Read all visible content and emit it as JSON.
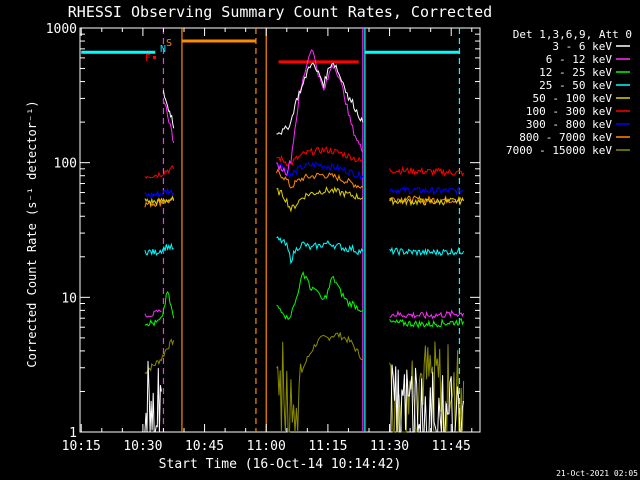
{
  "chart_data": {
    "type": "line",
    "title": "RHESSI Observing Summary Count Rates, Corrected",
    "xlabel": "Start Time (16-Oct-14 10:14:42)",
    "ylabel": "Corrected Count Rate (s⁻¹ detector⁻¹)",
    "x_range": [
      "10:14:42",
      "11:52:00"
    ],
    "ylim": [
      1,
      1000
    ],
    "y_scale": "log",
    "grid": false,
    "x_ticks": [
      "10:15",
      "10:30",
      "10:45",
      "11:00",
      "11:15",
      "11:30",
      "11:45"
    ],
    "y_ticks": [
      "1",
      "10",
      "100",
      "1000"
    ],
    "legend_header": "Det 1,3,6,9, Att 0",
    "legend_position": "right",
    "footer_date": "21-Oct-2021 02:05",
    "flags": [
      {
        "label": "S",
        "color": "#ff8c00"
      },
      {
        "label": "N",
        "color": "#00e5ff"
      },
      {
        "label": "F",
        "color": "#ff0000"
      }
    ],
    "series": [
      {
        "name": "3 - 6 keV",
        "color": "#ffffff",
        "segments": [
          {
            "x": [
              10.5083,
              10.5167,
              10.525,
              10.5333,
              10.5417,
              10.55,
              10.5583,
              10.5667,
              10.575
            ],
            "y": [
              1.8,
              1.6,
              2.0,
              1.5,
              1.9,
              1.7,
              1.8,
              1.5,
              2.0
            ]
          },
          {
            "x": [
              10.5833,
              10.5917,
              10.6,
              10.6083,
              10.6167,
              10.625
            ],
            "y": [
              330,
              300,
              260,
              240,
              220,
              180
            ]
          },
          {
            "x": [
              11.0417,
              11.0667,
              11.0833,
              11.1,
              11.1167,
              11.1333,
              11.15,
              11.1667,
              11.1833,
              11.2,
              11.2167,
              11.2333,
              11.25,
              11.2667,
              11.2833,
              11.3,
              11.3167,
              11.3333,
              11.35,
              11.3667,
              11.3917
            ],
            "y": [
              170,
              170,
              180,
              200,
              270,
              330,
              380,
              480,
              560,
              490,
              450,
              380,
              480,
              560,
              520,
              430,
              380,
              300,
              280,
              240,
              200
            ]
          },
          {
            "x": [
              11.5,
              11.55,
              11.6,
              11.65,
              11.7,
              11.75,
              11.8
            ],
            "y": [
              1.8,
              1.6,
              1.9,
              1.5,
              1.8,
              1.6,
              1.7
            ]
          }
        ]
      },
      {
        "name": "6 - 12 keV",
        "color": "#ff2dff",
        "segments": [
          {
            "x": [
              10.5083,
              10.55,
              10.575
            ],
            "y": [
              7.5,
              7.5,
              7.8
            ]
          },
          {
            "x": [
              10.5833,
              10.6,
              10.6167,
              10.625
            ],
            "y": [
              300,
              230,
              170,
              140
            ]
          },
          {
            "x": [
              11.0417,
              11.0667,
              11.0833,
              11.1,
              11.1167,
              11.1333,
              11.15,
              11.1667,
              11.1833,
              11.2,
              11.2167,
              11.2333,
              11.25,
              11.2667,
              11.2833,
              11.3,
              11.3167,
              11.3333,
              11.35,
              11.3667,
              11.3917
            ],
            "y": [
              95,
              90,
              85,
              105,
              180,
              300,
              420,
              560,
              720,
              560,
              420,
              340,
              420,
              540,
              500,
              400,
              320,
              230,
              180,
              150,
              120
            ]
          },
          {
            "x": [
              11.5,
              11.65,
              11.8
            ],
            "y": [
              7.5,
              7.3,
              7.6
            ]
          }
        ]
      },
      {
        "name": "12 - 25 keV",
        "color": "#00ff00",
        "segments": [
          {
            "x": [
              10.5083,
              10.55,
              10.575,
              10.6,
              10.625
            ],
            "y": [
              6.5,
              6.4,
              6.8,
              11,
              7
            ]
          },
          {
            "x": [
              11.0417,
              11.0667,
              11.0833,
              11.1,
              11.1167,
              11.1333,
              11.15,
              11.1667,
              11.1833,
              11.2,
              11.2167,
              11.2333,
              11.25,
              11.2667,
              11.2833,
              11.3,
              11.3167,
              11.3333,
              11.35,
              11.3667,
              11.3917
            ],
            "y": [
              8.5,
              8,
              7,
              7.5,
              9,
              12,
              15,
              14,
              11,
              12,
              10,
              9.5,
              11,
              14,
              13,
              11,
              10,
              9,
              9,
              8.5,
              8
            ]
          },
          {
            "x": [
              11.5,
              11.65,
              11.8
            ],
            "y": [
              6.5,
              6.3,
              6.6
            ]
          }
        ]
      },
      {
        "name": "25 - 50 keV",
        "color": "#00ffff",
        "segments": [
          {
            "x": [
              10.5083,
              10.55,
              10.575,
              10.6,
              10.625
            ],
            "y": [
              22,
              21.5,
              22.5,
              24,
              23
            ]
          },
          {
            "x": [
              11.0417,
              11.0667,
              11.0833,
              11.1,
              11.1167,
              11.1333,
              11.15,
              11.1667,
              11.1833,
              11.2,
              11.2167,
              11.2333,
              11.25,
              11.2667,
              11.2833,
              11.3,
              11.3167,
              11.3333,
              11.35,
              11.3667,
              11.3917
            ],
            "y": [
              27,
              26,
              24,
              19,
              22,
              24,
              25,
              24,
              23,
              24,
              24,
              25,
              25,
              25,
              24,
              24,
              23,
              23,
              23,
              22,
              22
            ]
          },
          {
            "x": [
              11.5,
              11.65,
              11.8
            ],
            "y": [
              22,
              21.5,
              22
            ]
          }
        ]
      },
      {
        "name": "50 - 100 keV",
        "color": "#e0d000",
        "segments": [
          {
            "x": [
              10.5083,
              10.55,
              10.575,
              10.6,
              10.625
            ],
            "y": [
              52,
              51,
              52,
              53,
              53
            ]
          },
          {
            "x": [
              11.0417,
              11.0667,
              11.0833,
              11.1,
              11.1167,
              11.1333,
              11.15,
              11.1667,
              11.1833,
              11.2,
              11.2167,
              11.2333,
              11.25,
              11.2667,
              11.2833,
              11.3,
              11.3167,
              11.3333,
              11.35,
              11.3667,
              11.3917
            ],
            "y": [
              62,
              58,
              52,
              45,
              48,
              52,
              56,
              58,
              59,
              60,
              61,
              62,
              62,
              62,
              61,
              60,
              59,
              58,
              57,
              56,
              55
            ]
          },
          {
            "x": [
              11.5,
              11.65,
              11.8
            ],
            "y": [
              52,
              51,
              52
            ]
          }
        ]
      },
      {
        "name": "100 - 300 keV",
        "color": "#ff0000",
        "segments": [
          {
            "x": [
              10.5083,
              10.55,
              10.575,
              10.6,
              10.625
            ],
            "y": [
              80,
              81,
              83,
              88,
              90
            ]
          },
          {
            "x": [
              11.0417,
              11.0667,
              11.0833,
              11.1,
              11.1167,
              11.1333,
              11.15,
              11.1667,
              11.1833,
              11.2,
              11.2167,
              11.2333,
              11.25,
              11.2667,
              11.2833,
              11.3,
              11.3167,
              11.3333,
              11.35,
              11.3667,
              11.3917
            ],
            "y": [
              110,
              105,
              100,
              98,
              105,
              110,
              115,
              118,
              120,
              122,
              123,
              124,
              124,
              122,
              120,
              118,
              115,
              112,
              110,
              105,
              102
            ]
          },
          {
            "x": [
              11.5,
              11.65,
              11.8
            ],
            "y": [
              88,
              86,
              84
            ]
          }
        ]
      },
      {
        "name": "300 - 800 keV",
        "color": "#0000ff",
        "segments": [
          {
            "x": [
              10.5083,
              10.55,
              10.575,
              10.6,
              10.625
            ],
            "y": [
              57,
              58,
              59,
              62,
              60
            ]
          },
          {
            "x": [
              11.0417,
              11.0667,
              11.0833,
              11.1,
              11.1167,
              11.1333,
              11.15,
              11.1667,
              11.1833,
              11.2,
              11.2167,
              11.2333,
              11.25,
              11.2667,
              11.2833,
              11.3,
              11.3167,
              11.3333,
              11.35,
              11.3667,
              11.3917
            ],
            "y": [
              100,
              95,
              88,
              80,
              85,
              90,
              93,
              95,
              96,
              97,
              96,
              95,
              94,
              93,
              92,
              90,
              88,
              86,
              84,
              82,
              80
            ]
          },
          {
            "x": [
              11.5,
              11.65,
              11.8
            ],
            "y": [
              63,
              62,
              62
            ]
          }
        ]
      },
      {
        "name": "800 - 7000 keV",
        "color": "#ff8c00",
        "segments": [
          {
            "x": [
              10.5083,
              10.55,
              10.575,
              10.6,
              10.625
            ],
            "y": [
              49,
              50,
              51,
              52,
              52
            ]
          },
          {
            "x": [
              11.0417,
              11.0667,
              11.0833,
              11.1,
              11.1167,
              11.1333,
              11.15,
              11.1667,
              11.1833,
              11.2,
              11.2167,
              11.2333,
              11.25,
              11.2667,
              11.2833,
              11.3,
              11.3167,
              11.3333,
              11.35,
              11.3667,
              11.3917
            ],
            "y": [
              85,
              80,
              74,
              66,
              70,
              74,
              77,
              78,
              79,
              80,
              81,
              81,
              80,
              79,
              78,
              76,
              74,
              72,
              70,
              68,
              66
            ]
          },
          {
            "x": [
              11.5,
              11.65,
              11.8
            ],
            "y": [
              54,
              53,
              53
            ]
          }
        ]
      },
      {
        "name": "7000 - 15000 keV",
        "color": "#8a8a00",
        "segments": [
          {
            "x": [
              10.5083,
              10.55,
              10.575,
              10.6,
              10.625
            ],
            "y": [
              2.8,
              3.2,
              3.5,
              4.3,
              4.8
            ]
          },
          {
            "x": [
              11.0417,
              11.0667,
              11.0833,
              11.1,
              11.1167,
              11.1333,
              11.15,
              11.1667,
              11.1833,
              11.2,
              11.2167,
              11.2333,
              11.25,
              11.2667,
              11.2833,
              11.3,
              11.3167,
              11.3333,
              11.35,
              11.3667,
              11.3917
            ],
            "y": [
              3,
              2.5,
              2,
              1.5,
              2,
              2.5,
              3,
              3.5,
              4,
              4.5,
              4.8,
              5,
              5,
              5.2,
              5.3,
              5.2,
              5,
              4.8,
              4.5,
              4,
              3.5
            ]
          },
          {
            "x": [
              11.5,
              11.65,
              11.8
            ],
            "y": [
              2.5,
              2.6,
              2.4
            ]
          }
        ]
      }
    ],
    "annotations": {
      "vertical_lines": [
        {
          "x": 10.5833,
          "color": "#ff2dff",
          "style": "dashed"
        },
        {
          "x": 10.6583,
          "color": "#ff8c00",
          "style": "solid"
        },
        {
          "x": 10.9583,
          "color": "#ff8c00",
          "style": "dashed"
        },
        {
          "x": 11.0,
          "color": "#ff8c00",
          "style": "solid"
        },
        {
          "x": 11.3917,
          "color": "#ff2dff",
          "style": "solid"
        },
        {
          "x": 11.4,
          "color": "#00ffff",
          "style": "solid"
        },
        {
          "x": 11.7833,
          "color": "#00ffff",
          "style": "dashed"
        }
      ],
      "bars": [
        {
          "x0": 10.25,
          "x1": 10.55,
          "color": "#00ffff",
          "level": 660
        },
        {
          "x0": 10.6583,
          "x1": 10.9583,
          "color": "#ff8c00",
          "level": 800
        },
        {
          "x0": 11.05,
          "x1": 11.375,
          "color": "#ff0000",
          "level": 560
        },
        {
          "x0": 11.4,
          "x1": 11.7833,
          "color": "#00ffff",
          "level": 660
        }
      ]
    }
  }
}
